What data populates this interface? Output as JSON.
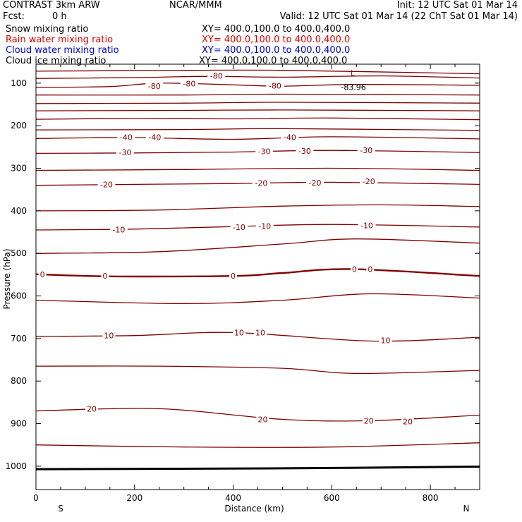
{
  "header": {
    "model": "CONTRAST  3km ARW",
    "center": "NCAR/MMM",
    "init": "Init: 12 UTC Sat 01 Mar 14",
    "fcst_label": "Fcst:",
    "fcst_value": "0 h",
    "valid": "Valid: 12 UTC Sat 01 Mar 14 (22 ChT Sat 01 Mar 14)",
    "fields": [
      {
        "name": "Snow mixing ratio",
        "xy": "XY= 400.0,100.0 to 400.0,400.0",
        "color": "#000000"
      },
      {
        "name": "Rain water mixing ratio",
        "xy": "XY= 400.0,100.0 to 400.0,400.0",
        "color": "#e00000"
      },
      {
        "name": "Cloud water mixing ratio",
        "xy": "XY= 400.0,100.0 to 400.0,400.0",
        "color": "#0000cc"
      },
      {
        "name": "Cloud ice mixing ratio",
        "xy": "XY= 400.0,100.0 to 400.0,400.0",
        "color": "#000000"
      }
    ]
  },
  "colors": {
    "contour": "#800000",
    "zero_contour": "#800000",
    "terrain": "#000000",
    "axis": "#000000"
  },
  "chart_data": {
    "type": "contour",
    "xlabel": "Distance (km)",
    "ylabel": "Pressure (hPa)",
    "x_ticks": [
      "0",
      "200",
      "400",
      "600",
      "800"
    ],
    "y_ticks": [
      "100",
      "200",
      "300",
      "400",
      "500",
      "600",
      "700",
      "800",
      "900",
      "1000"
    ],
    "xlim": [
      0,
      900
    ],
    "ylim": [
      1045,
      65
    ],
    "y_inverted": true,
    "left_end": "S",
    "right_end": "N",
    "min_marker": {
      "symbol": "L",
      "value": "-83.96",
      "x_km": 644,
      "p_hPa": 96
    },
    "contours": [
      {
        "x": [
          0,
          300,
          500,
          900
        ],
        "p": [
          72,
          70,
          70,
          78
        ],
        "labels": []
      },
      {
        "x": [
          0,
          200,
          350,
          500,
          700,
          900
        ],
        "p": [
          89,
          87,
          84,
          86,
          83,
          88
        ],
        "labels": [
          {
            "text": "-80",
            "x": 366,
            "p": 83
          }
        ]
      },
      {
        "x": [
          0,
          150,
          250,
          400,
          500,
          650,
          900
        ],
        "p": [
          110,
          108,
          100,
          104,
          107,
          103,
          105
        ],
        "labels": [
          {
            "text": "-80",
            "x": 240,
            "p": 107
          },
          {
            "text": "-80",
            "x": 311,
            "p": 101
          },
          {
            "text": "-80",
            "x": 485,
            "p": 106
          }
        ]
      },
      {
        "x": [
          0,
          300,
          500,
          900
        ],
        "p": [
          128,
          128,
          126,
          128
        ],
        "labels": []
      },
      {
        "x": [
          0,
          300,
          500,
          900
        ],
        "p": [
          148,
          147,
          145,
          147
        ],
        "labels": []
      },
      {
        "x": [
          0,
          300,
          500,
          900
        ],
        "p": [
          165,
          164,
          163,
          165
        ],
        "labels": []
      },
      {
        "x": [
          0,
          200,
          400,
          600,
          900
        ],
        "p": [
          185,
          183,
          184,
          182,
          186
        ],
        "labels": []
      },
      {
        "x": [
          0,
          300,
          500,
          900
        ],
        "p": [
          210,
          209,
          207,
          211
        ],
        "labels": []
      },
      {
        "x": [
          0,
          200,
          400,
          600,
          900
        ],
        "p": [
          230,
          228,
          232,
          226,
          231
        ],
        "labels": [
          {
            "text": "-40",
            "x": 183,
            "p": 227
          },
          {
            "text": "-40",
            "x": 241,
            "p": 227
          },
          {
            "text": "-40",
            "x": 515,
            "p": 227
          }
        ]
      },
      {
        "x": [
          0,
          200,
          400,
          600,
          900
        ],
        "p": [
          265,
          264,
          262,
          258,
          263
        ],
        "labels": [
          {
            "text": "-30",
            "x": 181,
            "p": 263
          },
          {
            "text": "-30",
            "x": 463,
            "p": 260
          },
          {
            "text": "-30",
            "x": 545,
            "p": 259
          },
          {
            "text": "-30",
            "x": 670,
            "p": 258
          }
        ]
      },
      {
        "x": [
          0,
          300,
          600,
          900
        ],
        "p": [
          305,
          303,
          300,
          305
        ],
        "labels": []
      },
      {
        "x": [
          0,
          200,
          400,
          600,
          900
        ],
        "p": [
          340,
          338,
          336,
          333,
          338
        ],
        "labels": [
          {
            "text": "-20",
            "x": 143,
            "p": 338
          },
          {
            "text": "-20",
            "x": 457,
            "p": 335
          },
          {
            "text": "-20",
            "x": 566,
            "p": 334
          },
          {
            "text": "-20",
            "x": 675,
            "p": 331
          }
        ]
      },
      {
        "x": [
          0,
          250,
          500,
          700,
          900
        ],
        "p": [
          400,
          398,
          389,
          386,
          390
        ],
        "labels": []
      },
      {
        "x": [
          0,
          200,
          400,
          600,
          900
        ],
        "p": [
          445,
          443,
          437,
          432,
          438
        ],
        "labels": [
          {
            "text": "-10",
            "x": 168,
            "p": 444
          },
          {
            "text": "-10",
            "x": 412,
            "p": 438
          },
          {
            "text": "-10",
            "x": 464,
            "p": 436
          },
          {
            "text": "-10",
            "x": 671,
            "p": 434
          }
        ]
      },
      {
        "x": [
          0,
          250,
          500,
          650,
          900
        ],
        "p": [
          500,
          496,
          478,
          466,
          476
        ],
        "labels": []
      },
      {
        "x": [
          0,
          150,
          400,
          500,
          640,
          900
        ],
        "p": [
          549,
          554,
          553,
          546,
          537,
          553
        ],
        "labels": [
          {
            "text": "0",
            "x": 13,
            "p": 549
          },
          {
            "text": "0",
            "x": 140,
            "p": 553
          },
          {
            "text": "0",
            "x": 400,
            "p": 553
          },
          {
            "text": "0",
            "x": 646,
            "p": 537
          },
          {
            "text": "0",
            "x": 678,
            "p": 537
          }
        ],
        "bold": true
      },
      {
        "x": [
          0,
          300,
          500,
          680,
          900
        ],
        "p": [
          610,
          618,
          610,
          595,
          605
        ],
        "labels": []
      },
      {
        "x": [
          0,
          200,
          400,
          680,
          900
        ],
        "p": [
          695,
          693,
          686,
          706,
          697
        ],
        "labels": [
          {
            "text": "10",
            "x": 148,
            "p": 693
          },
          {
            "text": "10",
            "x": 412,
            "p": 686
          },
          {
            "text": "10",
            "x": 455,
            "p": 686
          },
          {
            "text": "10",
            "x": 709,
            "p": 704
          }
        ]
      },
      {
        "x": [
          0,
          250,
          500,
          650,
          900
        ],
        "p": [
          765,
          765,
          770,
          782,
          775
        ],
        "labels": []
      },
      {
        "x": [
          0,
          250,
          500,
          680,
          900
        ],
        "p": [
          870,
          865,
          890,
          893,
          880
        ],
        "labels": [
          {
            "text": "20",
            "x": 113,
            "p": 865
          },
          {
            "text": "20",
            "x": 460,
            "p": 890
          },
          {
            "text": "20",
            "x": 675,
            "p": 893
          },
          {
            "text": "20",
            "x": 754,
            "p": 895
          }
        ]
      },
      {
        "x": [
          0,
          300,
          600,
          900
        ],
        "p": [
          950,
          955,
          955,
          945
        ],
        "labels": []
      }
    ],
    "terrain": {
      "x": [
        0,
        500,
        900
      ],
      "p": [
        1007,
        1005,
        1001
      ]
    }
  }
}
